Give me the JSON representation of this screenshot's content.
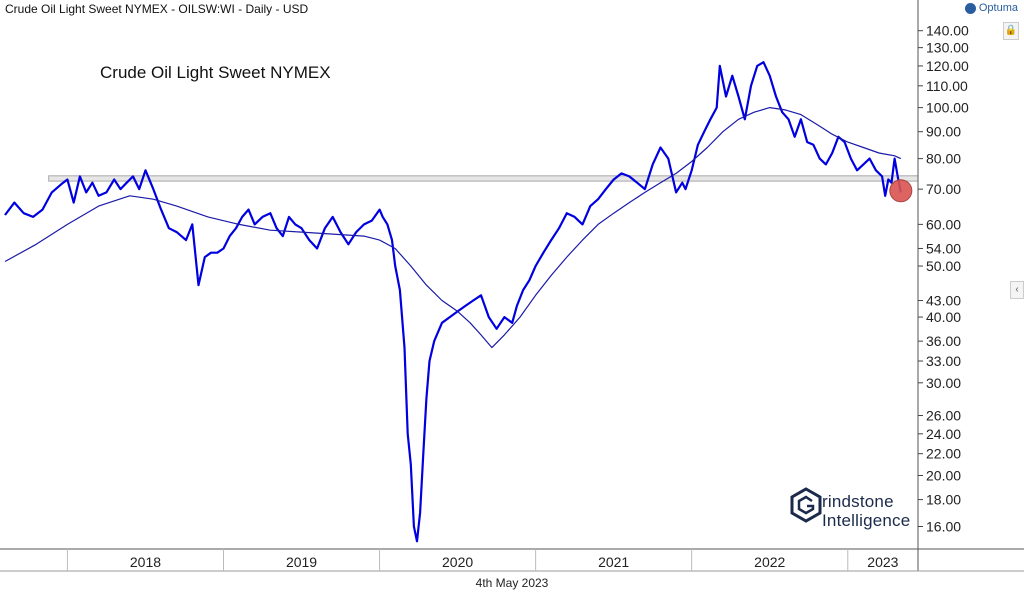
{
  "header": {
    "title": "Crude Oil Light Sweet NYMEX - OILSW:WI - Daily - USD",
    "brand": "Optuma"
  },
  "footer": {
    "date": "4th May 2023"
  },
  "watermark": {
    "line1": "rindstone",
    "line2": "Intelligence"
  },
  "colors": {
    "price": "#0000e0",
    "moving_average": "#1a1aa8",
    "resistance": "#a8a8a8",
    "marker": "#d9534f"
  },
  "chart_data": {
    "type": "line",
    "title": "Crude Oil Light Sweet NYMEX",
    "y_scale": "log",
    "ylim": [
      14.5,
      148
    ],
    "xlim": [
      2017.6,
      2023.45
    ],
    "x_ticks": [
      "2018",
      "2019",
      "2020",
      "2021",
      "2022",
      "2023"
    ],
    "y_ticks": [
      140,
      130,
      120,
      110,
      100,
      90,
      80,
      70,
      60,
      54,
      50,
      43,
      40,
      36,
      33,
      30,
      26,
      24,
      22,
      20,
      18,
      16
    ],
    "y_tick_labels": [
      "140.00",
      "130.00",
      "120.00",
      "110.00",
      "100.00",
      "90.00",
      "80.00",
      "70.00",
      "60.00",
      "54.00",
      "50.00",
      "43.00",
      "40.00",
      "36.00",
      "33.00",
      "30.00",
      "26.00",
      "24.00",
      "22.00",
      "20.00",
      "18.00",
      "16.00"
    ],
    "resistance_band": [
      72.5,
      74.2
    ],
    "marker": {
      "x": 2023.34,
      "y": 69.5
    },
    "series": [
      {
        "kind": "price",
        "x": [
          2017.6,
          2017.66,
          2017.72,
          2017.78,
          2017.84,
          2017.9,
          2017.96,
          2018.0,
          2018.04,
          2018.08,
          2018.12,
          2018.16,
          2018.2,
          2018.25,
          2018.3,
          2018.34,
          2018.38,
          2018.42,
          2018.46,
          2018.5,
          2018.55,
          2018.6,
          2018.65,
          2018.7,
          2018.76,
          2018.8,
          2018.84,
          2018.88,
          2018.92,
          2018.96,
          2019.0,
          2019.04,
          2019.08,
          2019.12,
          2019.16,
          2019.2,
          2019.25,
          2019.3,
          2019.34,
          2019.38,
          2019.42,
          2019.46,
          2019.5,
          2019.55,
          2019.6,
          2019.65,
          2019.7,
          2019.75,
          2019.8,
          2019.85,
          2019.9,
          2019.95,
          2020.0,
          2020.02,
          2020.05,
          2020.08,
          2020.1,
          2020.13,
          2020.16,
          2020.18,
          2020.2,
          2020.22,
          2020.24,
          2020.26,
          2020.28,
          2020.3,
          2020.32,
          2020.35,
          2020.4,
          2020.45,
          2020.5,
          2020.55,
          2020.6,
          2020.65,
          2020.7,
          2020.75,
          2020.8,
          2020.85,
          2020.88,
          2020.92,
          2020.96,
          2021.0,
          2021.05,
          2021.1,
          2021.15,
          2021.2,
          2021.25,
          2021.3,
          2021.35,
          2021.4,
          2021.45,
          2021.5,
          2021.55,
          2021.6,
          2021.65,
          2021.7,
          2021.75,
          2021.8,
          2021.85,
          2021.9,
          2021.94,
          2021.96,
          2022.0,
          2022.04,
          2022.08,
          2022.12,
          2022.16,
          2022.18,
          2022.22,
          2022.26,
          2022.3,
          2022.34,
          2022.38,
          2022.42,
          2022.46,
          2022.5,
          2022.54,
          2022.58,
          2022.62,
          2022.66,
          2022.7,
          2022.74,
          2022.78,
          2022.82,
          2022.86,
          2022.9,
          2022.94,
          2022.98,
          2023.02,
          2023.06,
          2023.1,
          2023.14,
          2023.18,
          2023.22,
          2023.24,
          2023.26,
          2023.28,
          2023.3,
          2023.32,
          2023.34
        ],
        "y": [
          62.5,
          66,
          63,
          62,
          64,
          69,
          71.5,
          73,
          66,
          74,
          69,
          72,
          68,
          69,
          73,
          70,
          72,
          74,
          70,
          76,
          70,
          64,
          59,
          58,
          56,
          60,
          46,
          52,
          53,
          53,
          54,
          57,
          59,
          62,
          64,
          60,
          62,
          63,
          59,
          57,
          62,
          60,
          59,
          56,
          54,
          59,
          62,
          58,
          55,
          58,
          60,
          61,
          64,
          62,
          60,
          56,
          50,
          45,
          35,
          24,
          21,
          16,
          15,
          17,
          22,
          28,
          33,
          36,
          39,
          40,
          41,
          42,
          43,
          44,
          40,
          38,
          40,
          39,
          42,
          45,
          47,
          50,
          53,
          56,
          59,
          63,
          62,
          60,
          65,
          67,
          70,
          73,
          75,
          74,
          72,
          70,
          78,
          84,
          80,
          69,
          72,
          70,
          76,
          85,
          90,
          95,
          100,
          120,
          105,
          115,
          105,
          95,
          110,
          120,
          122,
          115,
          105,
          98,
          95,
          88,
          95,
          86,
          85,
          80,
          78,
          82,
          88,
          86,
          80,
          76,
          78,
          80,
          76,
          74,
          68,
          73,
          72,
          80,
          74,
          69
        ]
      },
      {
        "kind": "moving_average",
        "x": [
          2017.6,
          2017.8,
          2018.0,
          2018.2,
          2018.4,
          2018.55,
          2018.7,
          2018.9,
          2019.1,
          2019.3,
          2019.5,
          2019.7,
          2019.9,
          2020.0,
          2020.1,
          2020.2,
          2020.3,
          2020.4,
          2020.5,
          2020.58,
          2020.65,
          2020.72,
          2020.8,
          2020.9,
          2021.0,
          2021.1,
          2021.2,
          2021.3,
          2021.4,
          2021.5,
          2021.6,
          2021.7,
          2021.8,
          2021.9,
          2022.0,
          2022.1,
          2022.2,
          2022.3,
          2022.4,
          2022.5,
          2022.6,
          2022.7,
          2022.8,
          2022.9,
          2023.0,
          2023.1,
          2023.2,
          2023.3,
          2023.34
        ],
        "y": [
          51,
          55,
          60,
          65,
          68,
          67,
          65,
          62,
          60,
          58.5,
          58,
          57.5,
          57,
          56,
          54,
          50,
          46,
          43,
          41,
          39,
          37,
          35,
          37,
          40,
          44,
          48,
          52,
          56,
          60,
          63,
          66,
          69,
          72,
          75,
          79,
          84,
          90,
          95,
          98,
          100,
          99,
          97,
          93,
          89,
          86,
          84,
          82,
          81,
          80
        ]
      }
    ]
  }
}
